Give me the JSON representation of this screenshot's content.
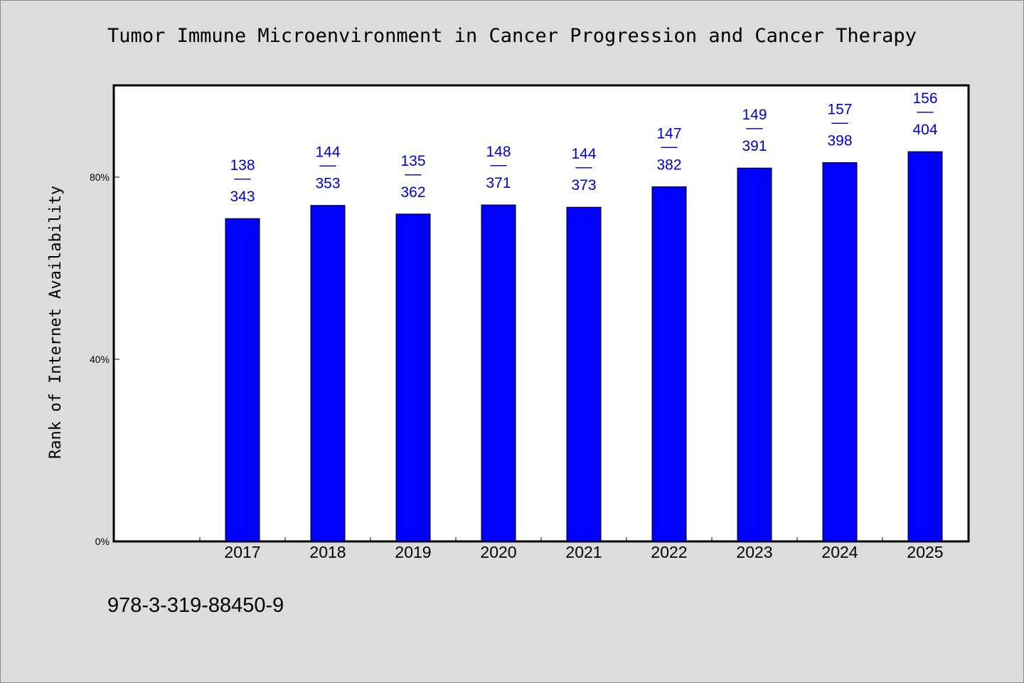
{
  "chart_data": {
    "type": "bar",
    "title": "Tumor Immune Microenvironment in Cancer Progression and Cancer Therapy",
    "xlabel": "",
    "ylabel": "Rank of Internet Availability",
    "categories": [
      "2017",
      "2018",
      "2019",
      "2020",
      "2021",
      "2022",
      "2023",
      "2024",
      "2025"
    ],
    "series": [
      {
        "values": [
          70.9,
          73.8,
          71.9,
          73.9,
          73.4,
          77.9,
          82.0,
          83.2,
          85.6
        ]
      }
    ],
    "data_labels": [
      [
        "138",
        "343"
      ],
      [
        "144",
        "353"
      ],
      [
        "135",
        "362"
      ],
      [
        "148",
        "371"
      ],
      [
        "144",
        "373"
      ],
      [
        "147",
        "382"
      ],
      [
        "149",
        "391"
      ],
      [
        "157",
        "398"
      ],
      [
        "156",
        "404"
      ]
    ],
    "data_label_separator": "––",
    "y_ticks": [
      {
        "value": 0,
        "label": "0%"
      },
      {
        "value": 40,
        "label": "40%"
      },
      {
        "value": 80,
        "label": "80%"
      }
    ],
    "ylim": [
      0,
      100
    ],
    "grid": false,
    "legend": "none",
    "colors": {
      "bar": "#0000ff",
      "data_label": "#0000cc",
      "background": "#dcdcdc",
      "plot_area": "#ffffff"
    }
  },
  "footer": {
    "isbn": "978-3-319-88450-9"
  }
}
